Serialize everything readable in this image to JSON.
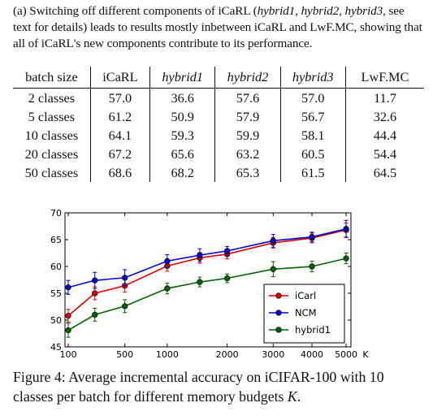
{
  "caption_a": {
    "prefix": "(a) Switching off different components of iCaRL (",
    "h1": "hybrid1",
    "sep1": ", ",
    "h2": "hybrid2",
    "sep2": ", ",
    "h3": "hybrid3",
    "suffix": ", see text for details) leads to results mostly inbetween iCaRL and LwF.MC, showing that all of iCaRL's new components contribute to its performance."
  },
  "table": {
    "headers": [
      "batch size",
      "iCaRL",
      "hybrid1",
      "hybrid2",
      "hybrid3",
      "LwF.MC"
    ],
    "rows": [
      [
        "2 classes",
        "57.0",
        "36.6",
        "57.6",
        "57.0",
        "11.7"
      ],
      [
        "5 classes",
        "61.2",
        "50.9",
        "57.9",
        "56.7",
        "32.6"
      ],
      [
        "10 classes",
        "64.1",
        "59.3",
        "59.9",
        "58.1",
        "44.4"
      ],
      [
        "20 classes",
        "67.2",
        "65.6",
        "63.2",
        "60.5",
        "54.4"
      ],
      [
        "50 classes",
        "68.6",
        "68.2",
        "65.3",
        "61.5",
        "64.5"
      ]
    ]
  },
  "chart_data": {
    "type": "line",
    "x": [
      100,
      250,
      500,
      1000,
      1500,
      2000,
      3000,
      4000,
      5000
    ],
    "xticks": [
      "100",
      "500",
      "1000",
      "2000",
      "3000",
      "4000",
      "5000"
    ],
    "xtick_values": [
      100,
      500,
      1000,
      2000,
      3000,
      4000,
      5000
    ],
    "xlabel_right": "K",
    "ylim": [
      45,
      70
    ],
    "yticks": [
      "45",
      "50",
      "55",
      "60",
      "65",
      "70"
    ],
    "xscale": "sqrt",
    "legend_position": "bottom-right",
    "series": [
      {
        "name": "iCarl",
        "color": "#e00000",
        "values": [
          50.8,
          55.0,
          56.4,
          60.1,
          61.6,
          62.3,
          64.4,
          65.3,
          66.8
        ],
        "err": [
          1.2,
          1.2,
          1.2,
          1.0,
          1.0,
          0.9,
          1.0,
          0.9,
          1.3
        ]
      },
      {
        "name": "NCM",
        "color": "#0000d0",
        "values": [
          56.1,
          57.4,
          57.9,
          61.0,
          62.1,
          62.9,
          64.8,
          65.5,
          67.0
        ],
        "err": [
          1.3,
          1.5,
          1.5,
          1.2,
          1.2,
          0.8,
          1.2,
          0.9,
          1.6
        ]
      },
      {
        "name": "hybrid1",
        "color": "#006400",
        "values": [
          48.1,
          51.0,
          52.6,
          55.9,
          57.1,
          57.8,
          59.5,
          60.0,
          61.5
        ],
        "err": [
          1.3,
          1.2,
          1.2,
          1.0,
          0.9,
          0.8,
          1.4,
          1.0,
          1.0
        ]
      }
    ]
  },
  "figure_caption": {
    "text": "Figure 4: Average incremental accuracy on iCIFAR-100 with 10 classes per batch for different memory budgets ",
    "var": "K",
    "end": "."
  }
}
